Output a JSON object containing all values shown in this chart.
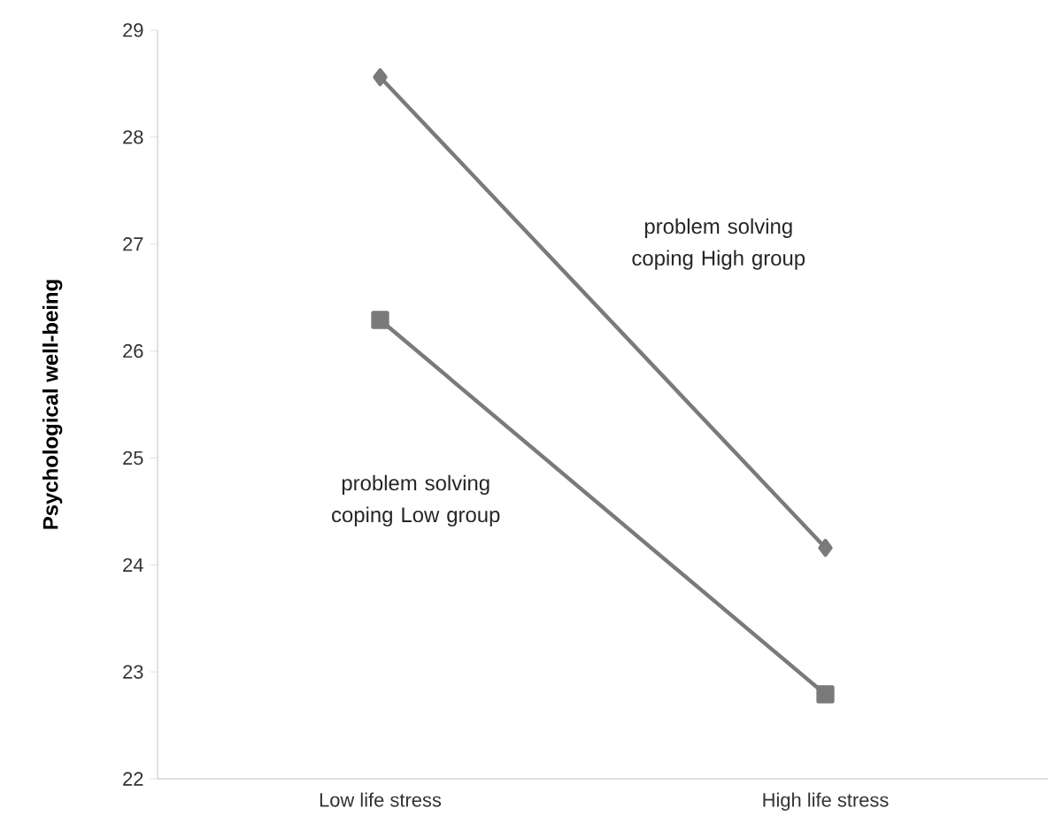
{
  "chart_data": {
    "type": "line",
    "ylabel": "Psychological well-being",
    "categories": [
      "Low  life stress",
      "High life stress"
    ],
    "series": [
      {
        "name": "problem solving coping High group",
        "color": "#7a7a7a",
        "marker": "diamond",
        "values": [
          28.56,
          24.16
        ]
      },
      {
        "name": "problem solving coping Low group",
        "color": "#7a7a7a",
        "marker": "square",
        "values": [
          26.29,
          22.79
        ]
      }
    ],
    "ylim": [
      22,
      29
    ],
    "yticks": [
      22,
      23,
      24,
      25,
      26,
      27,
      28,
      29
    ],
    "grid": false,
    "line_style": "solid"
  }
}
